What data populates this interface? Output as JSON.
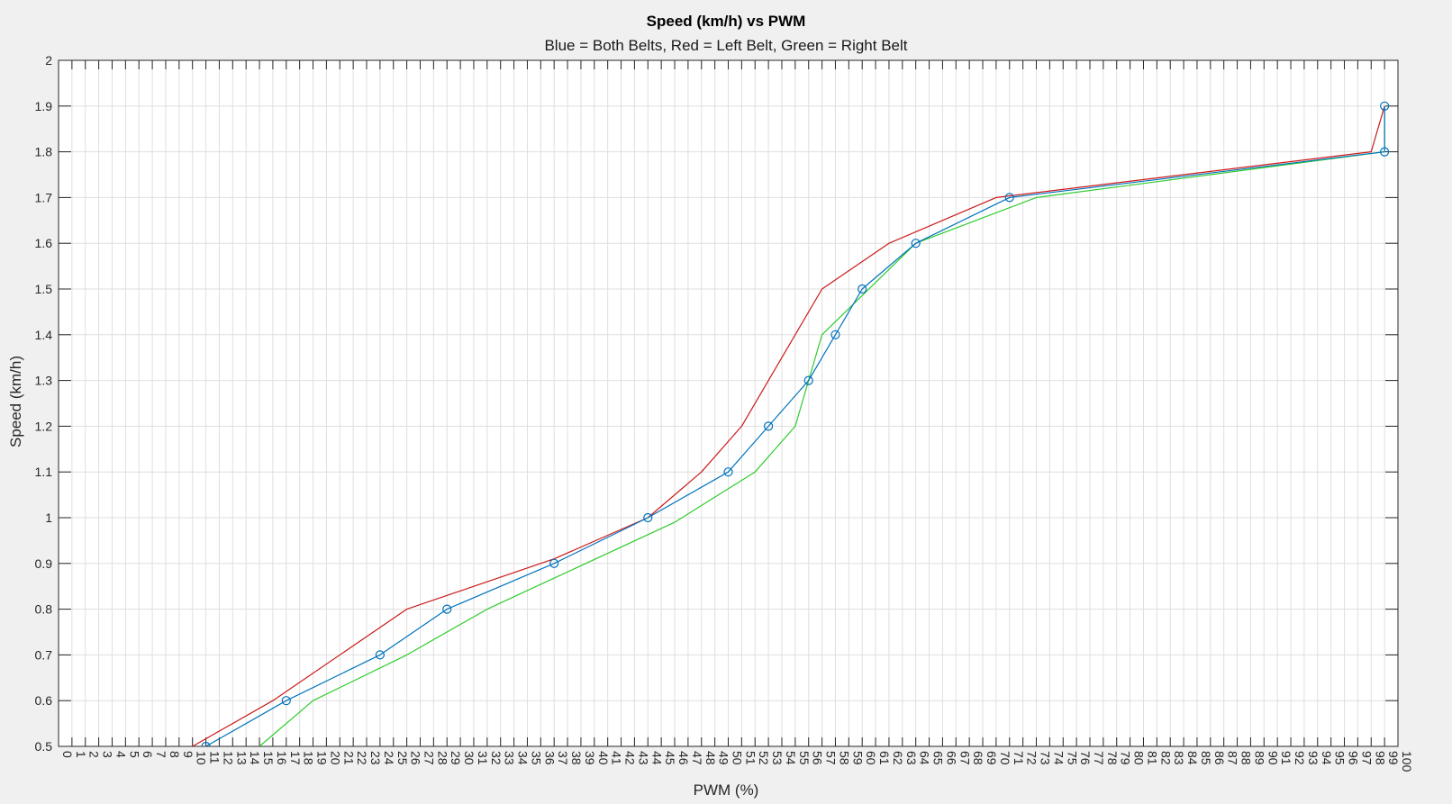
{
  "chart_data": {
    "type": "line",
    "title": "Speed (km/h) vs PWM",
    "subtitle": "Blue = Both Belts, Red = Left Belt, Green = Right Belt",
    "xlabel": "PWM (%)",
    "ylabel": "Speed (km/h)",
    "xlim": [
      0,
      100
    ],
    "ylim": [
      0.5,
      2
    ],
    "grid": true,
    "x_ticks": [
      "0",
      "1",
      "2",
      "3",
      "4",
      "5",
      "6",
      "7",
      "8",
      "9",
      "10",
      "11",
      "12",
      "13",
      "14",
      "15",
      "16",
      "17",
      "18",
      "19",
      "20",
      "21",
      "22",
      "23",
      "24",
      "25",
      "26",
      "27",
      "28",
      "29",
      "30",
      "31",
      "32",
      "33",
      "34",
      "35",
      "36",
      "37",
      "38",
      "39",
      "40",
      "41",
      "42",
      "43",
      "44",
      "45",
      "46",
      "47",
      "48",
      "49",
      "50",
      "51",
      "52",
      "53",
      "54",
      "55",
      "56",
      "57",
      "58",
      "59",
      "60",
      "61",
      "62",
      "63",
      "64",
      "65",
      "66",
      "67",
      "68",
      "69",
      "70",
      "71",
      "72",
      "73",
      "74",
      "75",
      "76",
      "77",
      "78",
      "79",
      "80",
      "81",
      "82",
      "83",
      "84",
      "85",
      "86",
      "87",
      "88",
      "89",
      "90",
      "91",
      "92",
      "93",
      "94",
      "95",
      "96",
      "97",
      "98",
      "99",
      "100"
    ],
    "y_ticks": [
      "0.5",
      "0.6",
      "0.7",
      "0.8",
      "0.9",
      "1",
      "1.1",
      "1.2",
      "1.3",
      "1.4",
      "1.5",
      "1.6",
      "1.7",
      "1.8",
      "1.9",
      "2"
    ],
    "series": [
      {
        "color": "#0072bd",
        "marker": "circle",
        "x": [
          11,
          17,
          24,
          29,
          37,
          44,
          50,
          53,
          56,
          58,
          60,
          64,
          71,
          99,
          99
        ],
        "y": [
          0.5,
          0.6,
          0.7,
          0.8,
          0.9,
          1.0,
          1.1,
          1.2,
          1.3,
          1.4,
          1.5,
          1.6,
          1.7,
          1.8,
          1.9
        ]
      },
      {
        "color": "#cc1a1a",
        "marker": "none",
        "x": [
          10,
          16,
          26,
          37,
          44,
          48,
          51,
          57,
          62,
          70,
          98,
          99
        ],
        "y": [
          0.5,
          0.6,
          0.8,
          0.91,
          1.0,
          1.1,
          1.2,
          1.5,
          1.6,
          1.7,
          1.8,
          1.9
        ]
      },
      {
        "color": "#2ecc2e",
        "marker": "none",
        "x": [
          15,
          19,
          26,
          32,
          46,
          52,
          55,
          57,
          64,
          73,
          99,
          99
        ],
        "y": [
          0.5,
          0.6,
          0.7,
          0.8,
          0.99,
          1.1,
          1.2,
          1.4,
          1.6,
          1.7,
          1.8,
          1.9
        ]
      }
    ]
  }
}
